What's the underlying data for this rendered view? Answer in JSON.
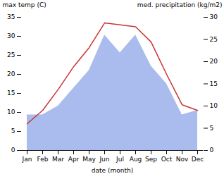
{
  "chart_data": {
    "type": "line",
    "xlabel": "date (month)",
    "ylabel": "max temp (C)",
    "y2label": "med. precipitation (kg/m2)",
    "categories": [
      "Jan",
      "Feb",
      "Mar",
      "Apr",
      "May",
      "Jun",
      "Jul",
      "Aug",
      "Sep",
      "Oct",
      "Nov",
      "Dec"
    ],
    "series": [
      {
        "type": "area",
        "axis": "y2",
        "color": "#aabbee",
        "values": [
          8,
          8,
          10,
          14,
          18,
          26,
          22,
          26,
          19,
          15,
          8,
          9
        ]
      },
      {
        "type": "line",
        "color": "#cc3333",
        "values": [
          7,
          10.5,
          16,
          22,
          27,
          33.5,
          33,
          32.5,
          28.5,
          20,
          12,
          10.5
        ]
      }
    ],
    "ylim": [
      0,
      35
    ],
    "yticks": [
      0,
      5,
      10,
      15,
      20,
      25,
      30,
      35
    ],
    "y2lim": [
      0,
      30
    ],
    "y2ticks": [
      0,
      5,
      10,
      15,
      20,
      25,
      30
    ],
    "grid": false
  }
}
